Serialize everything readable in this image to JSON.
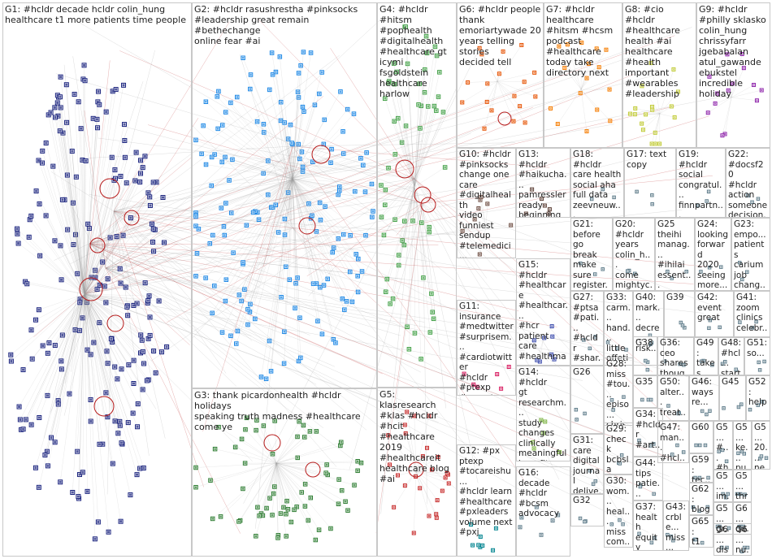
{
  "groups": [
    {
      "id": "G1",
      "text": "G1: #hcldr decade hcldr colin_hung\nhealthcare t1 more patients time people"
    },
    {
      "id": "G2",
      "text": "G2: #hcldr rasushrestha #pinksocks\n#leadership great remain #bethechange\nonline fear #ai"
    },
    {
      "id": "G3",
      "text": "G3: thank picardonhealth #hcldr holidays\nspeaking truth madness #healthcare\ncome ye"
    },
    {
      "id": "G4",
      "text": "G4: #hcldr #hitsm\n#pophealth\n#digitalhealth\n#healthcare gt\nicymi fsgoldstein\nhealthcare harlow"
    },
    {
      "id": "G5",
      "text": "G5: klasresearch\n#klas #hcldr #hcit\n#healthcare 2019\n#healthcareit\nhealthcare blog\n#ai"
    },
    {
      "id": "G6",
      "text": "G6: #hcldr people\nthank\nemoriartywade 20\nyears telling stories\ndecided tell"
    },
    {
      "id": "G7",
      "text": "G7: #hcldr\nhealthcare\n#hitsm #hcsm\npodcast\n#healthcare\ntoday take\ndirectory next"
    },
    {
      "id": "G8",
      "text": "G8: #cio #hcldr\n#healthcare\nhealth #ai\nhealthcare\n#health\nimportant\n#wearables\n#leadership"
    },
    {
      "id": "G9",
      "text": "G9: #hcldr\n#philly sklasko\ncolin_hung\nchrissyfarr\njgebabalan\natul_gawande\nebukstel\nincredible\nholiday"
    },
    {
      "id": "G10",
      "text": "G10: #hcldr\n#pinksocks\nchange one\ncare\n#digitalhealth\nvideo\nfunniest\nsendup\n#telemedici..."
    },
    {
      "id": "G13",
      "text": "G13: #hcldr\n#haikucha...\npamressler\nready\nbeginning\njan join\nwriting\nhaiku day"
    },
    {
      "id": "G18",
      "text": "G18: #hcldr\ncare health\nsocial aha\nfull data\nzeevneuw...\ntime..."
    },
    {
      "id": "G17",
      "text": "G17: text\ncopy"
    },
    {
      "id": "G19",
      "text": "G19:\n#hcldr\nsocial\ncongratul...\nfinnpartn...\nperson..."
    },
    {
      "id": "G22",
      "text": "G22:\n#docsf20\n#hcldr\naction\nsomeone\ndecision..."
    },
    {
      "id": "G21",
      "text": "G21:\nbefore\ngo break\nmake\nsure\nregister..."
    },
    {
      "id": "G20",
      "text": "G20:\n#hcldr\nyears\ncolin_h...\ncome\nmightyc..."
    },
    {
      "id": "G25",
      "text": "G25\ntheihi\nmanag...\n#ihilai\nessent...\nbegins..."
    },
    {
      "id": "G24",
      "text": "G24:\nlooking\nforward\n2020\nseeing\nmore..."
    },
    {
      "id": "G23",
      "text": "G23:\nempo...\npatients\ncarium\njob\nchang..."
    },
    {
      "id": "G15",
      "text": "G15: #hcldr\n#healthcare\n#healthcar...\n#hcr patient\ncare\n#healthma...\nmore\n#healthsy..."
    },
    {
      "id": "G27",
      "text": "G27:\n#ptsa\n#pati...\n#hcldr\n#shar...\n#med..."
    },
    {
      "id": "G33",
      "text": "G33:\ncarm...\nhand...\nlittle\noffeti...\nrica"
    },
    {
      "id": "G40",
      "text": "G40:\nmark...\ndecre...\nrisk..."
    },
    {
      "id": "G39",
      "text": "G39"
    },
    {
      "id": "G42",
      "text": "G42:\nevent\ngreat"
    },
    {
      "id": "G41",
      "text": "G41:\nzoom\nclinics\ncelebr..."
    },
    {
      "id": "G11",
      "text": "G11:\ninsurance\n#medtwitter\n#surprisem...\n#cardiotwitter\n#hcldr #ptexp\n#acccvt\nmedical\nemergency\nvietheartpa"
    },
    {
      "id": "G38",
      "text": "G38"
    },
    {
      "id": "G36",
      "text": "G36:\nceo\nshares\nthoug..."
    },
    {
      "id": "G49",
      "text": "G49:\ntakes\nded...\ncari..."
    },
    {
      "id": "G48",
      "text": "G48:\n#hcl...\nstart\npeo..."
    },
    {
      "id": "G51",
      "text": "G51:\nso..."
    },
    {
      "id": "G14",
      "text": "G14: #hcldr\ngt\nresearchm...\nstudy\nchanges\nclinically\nmeaningful\nbenefit..."
    },
    {
      "id": "G26",
      "text": "G26"
    },
    {
      "id": "G28",
      "text": "G28:\nmiss\n#tou...\nepiso...\nchris..."
    },
    {
      "id": "G35",
      "text": "G35"
    },
    {
      "id": "G50",
      "text": "G50:\nalter...\ntreat..."
    },
    {
      "id": "G46",
      "text": "G46:\nways\nre..."
    },
    {
      "id": "G45",
      "text": "G45"
    },
    {
      "id": "G52",
      "text": "G52:\nhelp"
    },
    {
      "id": "G31",
      "text": "G31:\ncare\ndigital\njournal\ndelive..."
    },
    {
      "id": "G29",
      "text": "G29:\ncheck\nbcbsla\nuses\ntools..."
    },
    {
      "id": "G34",
      "text": "G34:\n#hcldr\n#art...\nmark..."
    },
    {
      "id": "G47",
      "text": "G47:\nman...\n#hcl..."
    },
    {
      "id": "G60",
      "text": "G60"
    },
    {
      "id": "G53",
      "text": "G5...\n#...\n#h..."
    },
    {
      "id": "G54",
      "text": "G5...\nke...\npu..."
    },
    {
      "id": "G55",
      "text": "G5...\n20...\nne..."
    },
    {
      "id": "G12",
      "text": "G12: #px\nptexp\n#tocareishu...\n#hcldr learn\n#healthcare\n#pxleaders\nvolume next\n#pxj"
    },
    {
      "id": "G16",
      "text": "G16:\ndecade\n#hcldr\n#bcsm\nadvocacy"
    },
    {
      "id": "G32",
      "text": "G32"
    },
    {
      "id": "G30",
      "text": "G30:\nwom...\nheal...\nmiss\ncom..."
    },
    {
      "id": "G44",
      "text": "G44:\ntips\npatie..."
    },
    {
      "id": "G59",
      "text": "G59:\ntec..."
    },
    {
      "id": "G56",
      "text": "G5...\nim..."
    },
    {
      "id": "G57",
      "text": "G5...\nthr..."
    },
    {
      "id": "G37",
      "text": "G37:\nhealth\nequity\naddr..."
    },
    {
      "id": "G43",
      "text": "G43:\ncrble...\nmiss..."
    },
    {
      "id": "G62",
      "text": "G62:\nblog"
    },
    {
      "id": "G58",
      "text": "G5...\ngr..."
    },
    {
      "id": "G61",
      "text": "G6...\nqu..."
    },
    {
      "id": "G65",
      "text": "G65:\nt1"
    },
    {
      "id": "G63",
      "text": "G6...\ndis..."
    },
    {
      "id": "G64",
      "text": "G6...\nnu..."
    }
  ],
  "colors": {
    "G1": "#1a237e",
    "G2": "#1e88e5",
    "G3": "#2e7d32",
    "G4": "#43a047",
    "G5": "#c62828",
    "G6": "#e65100",
    "G7": "#f57c00",
    "G8": "#c0ca33",
    "G9": "#8e24aa",
    "G10": "#6d4c41",
    "G11": "#d81b60",
    "G12": "#00838f",
    "G13": "#5d4037",
    "G14": "#7cb342",
    "G15": "#3949ab",
    "edge": "#9e9e9e",
    "edge_red": "#b71c1c",
    "border": "#c8c8c8"
  }
}
